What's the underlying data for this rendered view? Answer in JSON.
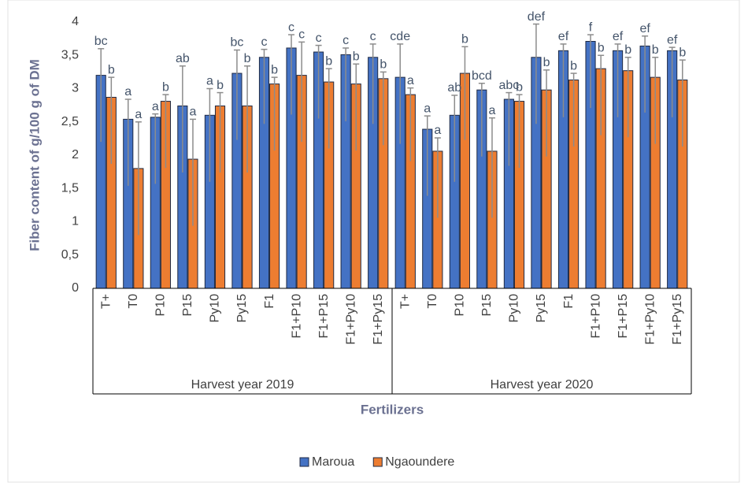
{
  "chart_data": {
    "type": "bar",
    "y_label": "Fiber content of g/100 g of DM",
    "x_label": "Fertilizers",
    "groups": [
      {
        "label": "Harvest year 2019",
        "categories": [
          "T+",
          "T0",
          "P10",
          "P15",
          "Py10",
          "Py15",
          "F1",
          "F1+P10",
          "F1+P15",
          "F1+Py10",
          "F1+Py15"
        ]
      },
      {
        "label": "Harvest year 2020",
        "categories": [
          "T+",
          "T0",
          "P10",
          "P15",
          "Py10",
          "Py15",
          "F1",
          "F1+P10",
          "F1+P15",
          "F1+Py10",
          "F1+Py15"
        ]
      }
    ],
    "series": [
      {
        "name": "Maroua",
        "color": "#4472c4",
        "values": [
          3.2,
          2.54,
          2.57,
          2.74,
          2.6,
          3.23,
          3.47,
          3.61,
          3.55,
          3.51,
          3.47,
          3.17,
          2.39,
          2.6,
          2.98,
          2.84,
          3.47,
          3.57,
          3.71,
          3.57,
          3.64,
          3.57
        ],
        "errors_plus": [
          0.4,
          0.3,
          0.05,
          0.6,
          0.4,
          0.35,
          0.12,
          0.2,
          0.1,
          0.1,
          0.2,
          0.5,
          0.2,
          0.3,
          0.1,
          0.1,
          0.5,
          0.1,
          0.1,
          0.1,
          0.15,
          0.05
        ],
        "errors_minus": [
          1,
          1,
          1,
          1,
          1,
          1,
          1,
          1,
          1,
          1,
          1,
          1,
          1,
          1,
          1,
          1,
          1,
          1,
          1,
          1,
          1,
          1
        ],
        "letters": [
          "bc",
          "a",
          "a",
          "ab",
          "a",
          "bc",
          "c",
          "c",
          "c",
          "c",
          "c",
          "cde",
          "a",
          "ab",
          "bcd",
          "abc",
          "def",
          "ef",
          "f",
          "ef",
          "ef",
          "ef"
        ]
      },
      {
        "name": "Ngaoundere",
        "color": "#ed7d31",
        "values": [
          2.87,
          1.8,
          2.81,
          1.94,
          2.74,
          2.74,
          3.07,
          3.2,
          3.1,
          3.07,
          3.15,
          2.91,
          2.06,
          3.23,
          2.06,
          2.81,
          2.98,
          3.13,
          3.3,
          3.27,
          3.17,
          3.13
        ],
        "errors_plus": [
          0.3,
          0.7,
          0.1,
          0.6,
          0.2,
          0.6,
          0.1,
          0.5,
          0.2,
          0.3,
          0.1,
          0.1,
          0.2,
          0.4,
          0.5,
          0.1,
          0.3,
          0.1,
          0.2,
          0.2,
          0.3,
          0.3
        ],
        "errors_minus": [
          1,
          1,
          1,
          1,
          1,
          1,
          1,
          1,
          1,
          1,
          1,
          1,
          1,
          1,
          1,
          1,
          1,
          1,
          1,
          1,
          1,
          1
        ],
        "letters": [
          "b",
          "a",
          "b",
          "a",
          "b",
          "b",
          "b",
          "c",
          "b",
          "b",
          "b",
          "a",
          "a",
          "b",
          "a",
          "b",
          "b",
          "b",
          "b",
          "b",
          "b",
          "b"
        ]
      }
    ],
    "ylim": [
      0,
      4
    ],
    "yticks": [
      0,
      {
        "value": 0.5,
        "label": "0,5"
      },
      1,
      {
        "value": 1.5,
        "label": "1,5"
      },
      2,
      {
        "value": 2.5,
        "label": "2,5"
      },
      3,
      {
        "value": 3.5,
        "label": "3,5"
      },
      4
    ],
    "legend": "bottom"
  }
}
